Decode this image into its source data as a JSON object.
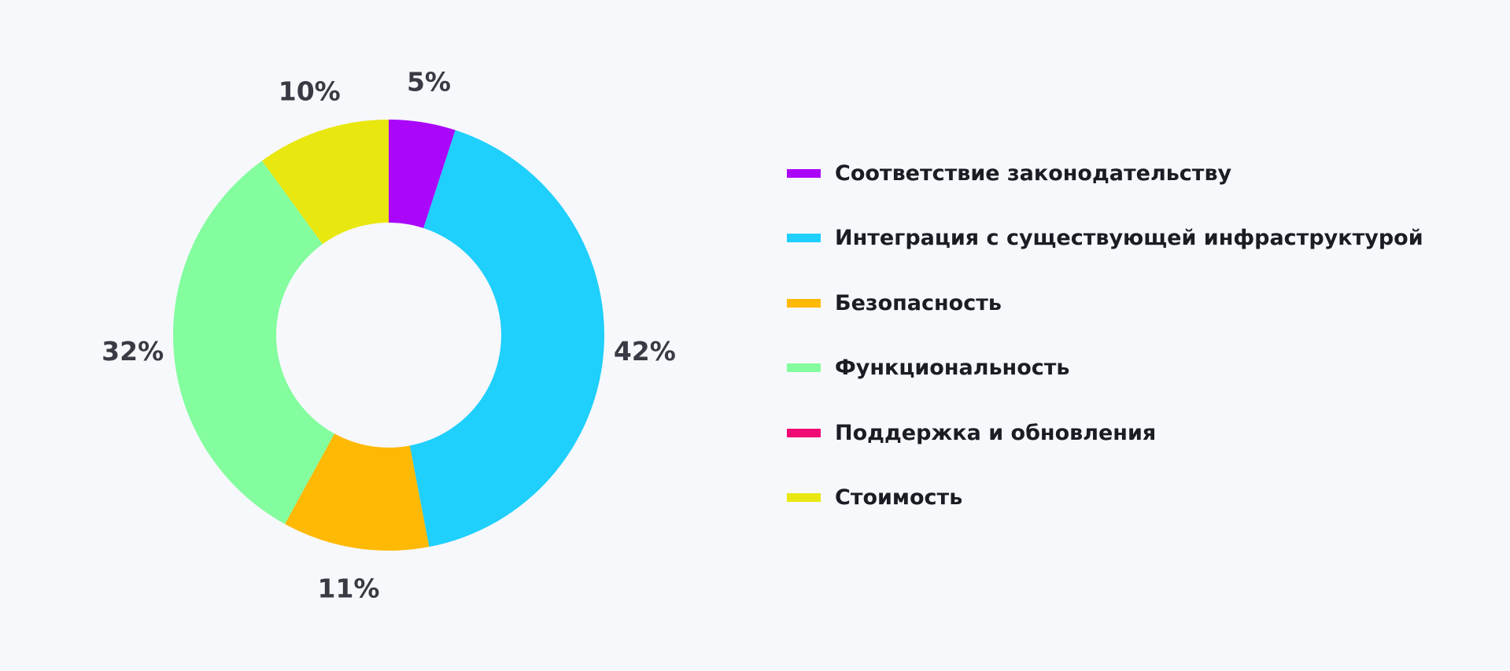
{
  "chart_data": {
    "type": "pie",
    "variant": "donut",
    "title": "",
    "categories": [
      "Соответствие законодательству",
      "Интеграция с существующей инфраструктурой",
      "Безопасность",
      "Функциональность",
      "Поддержка и обновления",
      "Стоимость"
    ],
    "values": [
      5,
      42,
      11,
      32,
      0,
      10
    ],
    "value_labels": [
      "5%",
      "42%",
      "11%",
      "32%",
      "",
      "10%"
    ],
    "colors": [
      "#aa06f9",
      "#1fcffc",
      "#feb904",
      "#83fd9e",
      "#f00b75",
      "#e9e710"
    ],
    "legend_position": "right",
    "grid": false
  }
}
